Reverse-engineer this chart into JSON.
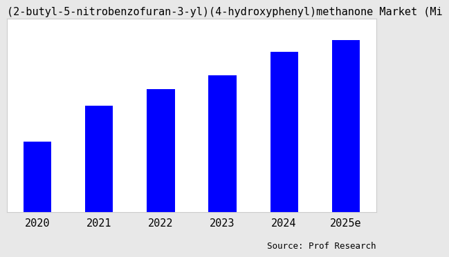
{
  "title": "(2-butyl-5-nitrobenzofuran-3-yl)(4-hydroxyphenyl)methanone Market (Mi",
  "categories": [
    "2020",
    "2021",
    "2022",
    "2023",
    "2024",
    "2025e"
  ],
  "values": [
    3.0,
    4.5,
    5.2,
    5.8,
    6.8,
    7.3
  ],
  "bar_color": "#0000FF",
  "background_color": "#e8e8e8",
  "plot_background": "#ffffff",
  "source_text": "Source: Prof Research",
  "title_fontsize": 11,
  "tick_fontsize": 11,
  "source_fontsize": 9,
  "ylim": [
    0,
    8.2
  ]
}
